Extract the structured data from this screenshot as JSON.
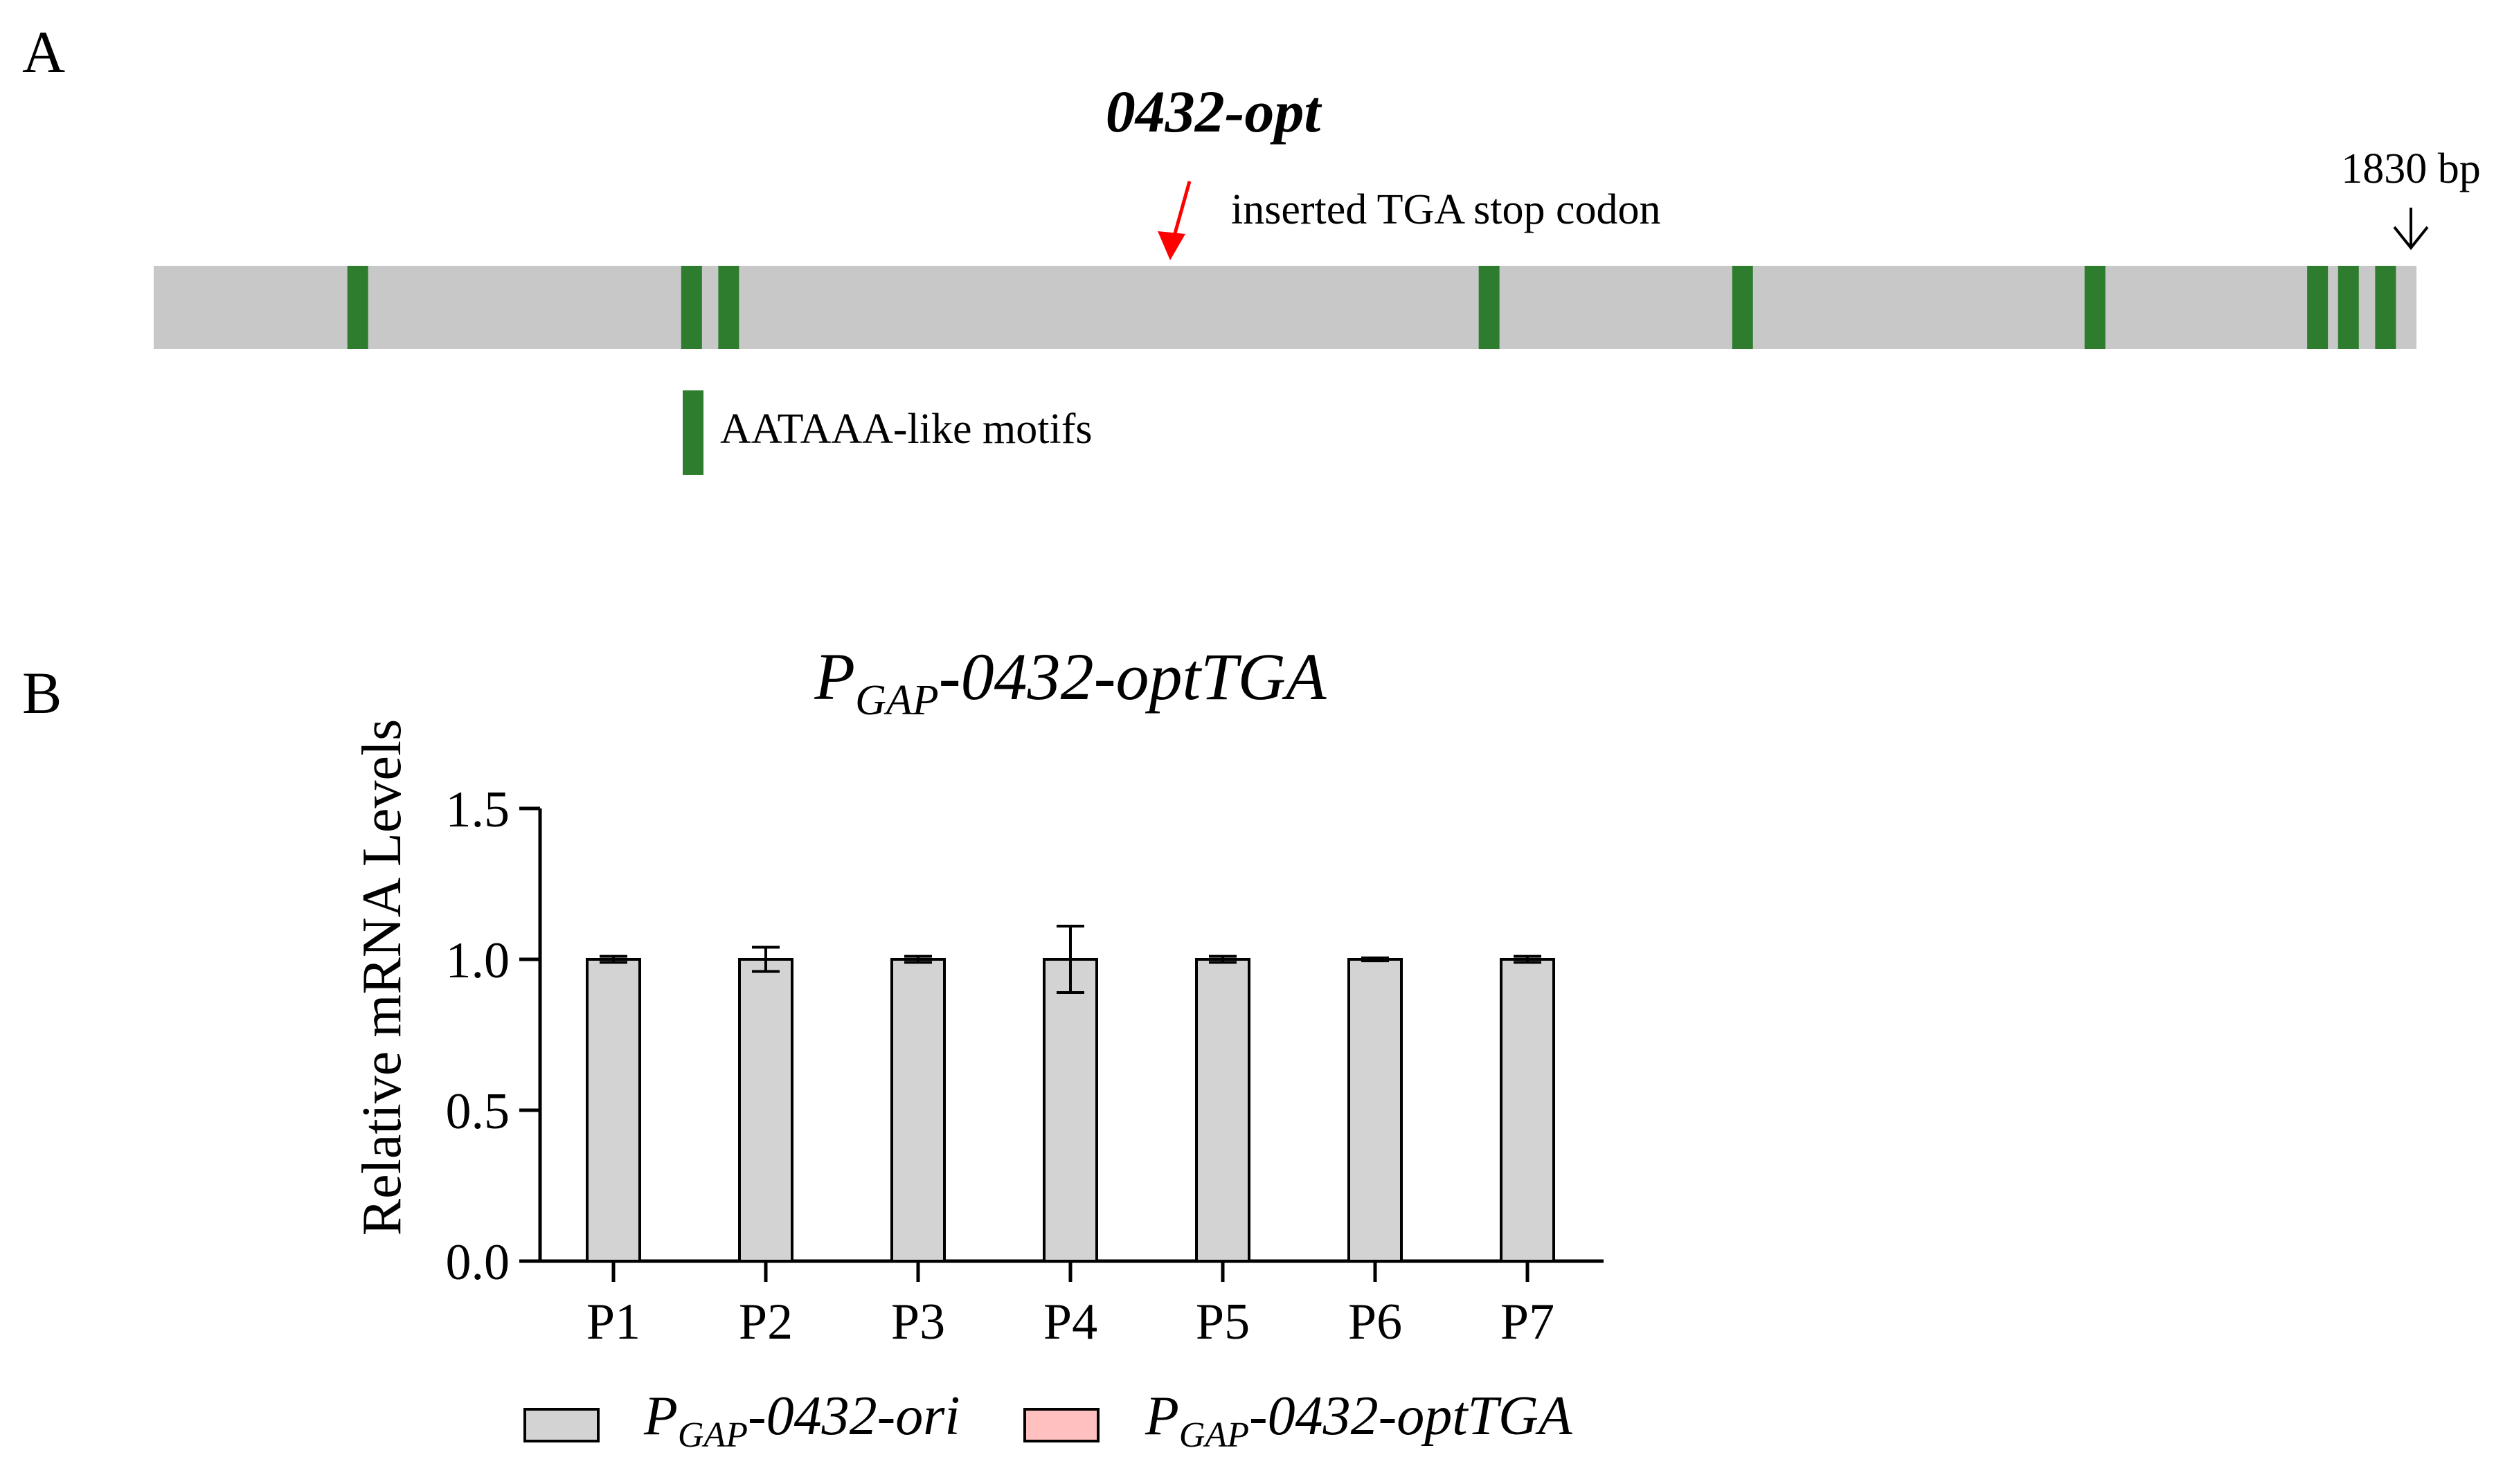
{
  "panels": {
    "a_label": "A",
    "b_label": "B"
  },
  "gene_map": {
    "title": "0432-opt",
    "length_label": "1830 bp",
    "length_bp": 1830,
    "stop_codon_label": "inserted TGA stop codon",
    "stop_codon_position_bp": 820,
    "motif_legend_label": "AATAAA-like motifs",
    "motif_positions_bp": [
      165,
      435,
      465,
      1080,
      1285,
      1570,
      1750,
      1775,
      1805
    ],
    "colors": {
      "bar": "#c8c8c8",
      "motif": "#2e7d2e",
      "stop_arrow": "#ff0000"
    }
  },
  "chart_data": {
    "type": "bar",
    "title": {
      "main": "P",
      "sub": "GAP",
      "rest": "-0432-optTGA"
    },
    "ylabel": "Relative mRNA Levels",
    "ylim": [
      0.0,
      1.5
    ],
    "yticks": [
      "0.0",
      "0.5",
      "1.0",
      "1.5"
    ],
    "categories": [
      "P1",
      "P2",
      "P3",
      "P4",
      "P5",
      "P6",
      "P7"
    ],
    "series": [
      {
        "name": {
          "main": "P",
          "sub": "GAP",
          "rest": "-0432-ori"
        },
        "color": "#d3d3d3",
        "values": [
          1.0,
          1.0,
          1.0,
          1.0,
          1.0,
          1.0,
          1.0
        ],
        "errors": [
          0.01,
          0.04,
          0.01,
          0.11,
          0.01,
          0.005,
          0.01
        ]
      },
      {
        "name": {
          "main": "P",
          "sub": "GAP",
          "rest": "-0432-optTGA"
        },
        "color": "#ffc0c0",
        "values": [
          0.0,
          0.0,
          0.0,
          0.0,
          0.0,
          0.0,
          0.0
        ],
        "errors": [
          0,
          0,
          0,
          0,
          0,
          0,
          0
        ]
      }
    ],
    "legend_position": "bottom"
  }
}
